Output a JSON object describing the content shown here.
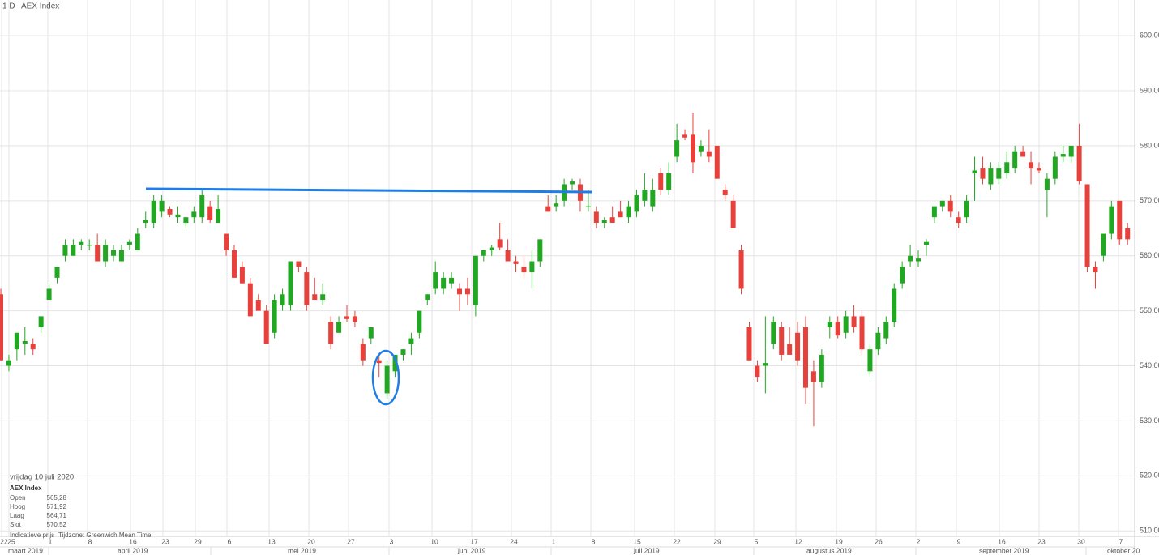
{
  "chart_data": {
    "type": "candlestick",
    "interval": "1 D",
    "title": "AEX Index",
    "ylim": [
      509,
      606.5
    ],
    "yticks": [
      {
        "value": 510,
        "label": "510,00"
      },
      {
        "value": 520,
        "label": "520,00"
      },
      {
        "value": 530,
        "label": "530,00"
      },
      {
        "value": 540,
        "label": "540,00"
      },
      {
        "value": 550,
        "label": "550,00"
      },
      {
        "value": 560,
        "label": "560,00"
      },
      {
        "value": 570,
        "label": "570,00"
      },
      {
        "value": 580,
        "label": "580,00"
      },
      {
        "value": 590,
        "label": "590,00"
      },
      {
        "value": 600,
        "label": "600,00"
      }
    ],
    "grid": true,
    "up_color": "#22a722",
    "down_color": "#e8413c",
    "open": [
      553,
      540,
      543,
      544,
      544,
      547,
      552,
      556,
      560,
      560,
      562,
      562,
      562,
      559,
      560,
      559,
      562,
      561,
      566,
      566,
      568,
      568.5,
      567,
      566,
      567,
      567,
      569,
      566,
      564,
      561,
      558,
      555,
      552,
      550,
      546,
      551,
      551,
      559,
      557,
      553,
      552,
      548,
      546,
      549,
      549,
      544,
      545,
      541,
      535,
      539,
      542,
      544,
      546,
      552,
      554,
      554,
      555,
      554,
      554,
      551,
      560,
      561,
      563,
      561,
      559,
      558,
      557,
      559,
      569,
      569,
      570,
      573,
      573,
      569,
      568,
      566,
      567,
      568,
      567,
      568,
      570,
      569,
      575,
      572,
      578,
      582,
      582,
      579,
      579,
      580,
      572,
      570,
      561,
      547,
      540,
      540,
      544,
      547,
      544,
      546,
      547,
      539,
      537,
      547,
      548,
      546,
      549,
      549,
      539,
      543,
      545,
      548,
      555,
      559,
      559,
      562,
      567,
      569,
      570,
      567,
      567,
      575,
      576,
      573,
      574,
      575,
      576,
      579,
      577,
      576,
      572,
      574,
      578,
      578,
      580,
      573,
      558,
      560,
      564,
      570,
      565
    ],
    "high": [
      554,
      542,
      546,
      547,
      545,
      549,
      555,
      558,
      563,
      563,
      563,
      563,
      564,
      563,
      562,
      562,
      563,
      565,
      568,
      571,
      571,
      569,
      569,
      567,
      569,
      572,
      570,
      571,
      564,
      562,
      559,
      556,
      553,
      551,
      553,
      554,
      559,
      559,
      558,
      556,
      555,
      549,
      549,
      551,
      550,
      545,
      547,
      542,
      541,
      542,
      543,
      546,
      550,
      553,
      559,
      557,
      557,
      555,
      556,
      560,
      561,
      562,
      566,
      563,
      560,
      560,
      561,
      563,
      571,
      571,
      574,
      574,
      574,
      572,
      569,
      567,
      569,
      570,
      570,
      572,
      575,
      574,
      576,
      577,
      584,
      583,
      586,
      581,
      583,
      580,
      573,
      571,
      562,
      548,
      541,
      549,
      549,
      548,
      547,
      548,
      549,
      541,
      543,
      549,
      549,
      550,
      551,
      550,
      544,
      547,
      549,
      555,
      559,
      562,
      561,
      563,
      569,
      570,
      571,
      568,
      571,
      578,
      578,
      577,
      577,
      579,
      580,
      580,
      579,
      577,
      575,
      579,
      580,
      580,
      584,
      573,
      559,
      564,
      570,
      570,
      566
    ],
    "low": [
      541,
      539,
      541,
      542,
      542,
      546,
      552,
      555,
      559,
      560,
      561,
      561,
      559,
      558,
      559,
      559,
      561,
      561,
      565,
      565,
      567,
      567,
      566,
      565,
      566,
      566,
      566,
      566,
      560,
      556,
      555,
      549,
      550,
      544,
      545,
      550,
      550,
      557,
      550,
      552,
      551,
      543,
      546,
      548,
      547,
      540,
      544,
      538,
      534,
      538,
      541,
      542,
      545,
      551,
      553,
      553,
      554,
      550,
      551,
      549,
      559,
      560,
      561,
      559,
      557,
      556,
      554,
      558,
      568,
      568,
      569,
      572,
      568,
      568,
      565,
      565,
      566,
      567,
      566,
      567,
      569,
      568,
      571,
      571,
      577,
      581,
      575,
      578,
      577,
      574,
      570,
      565,
      553,
      541,
      537,
      535,
      543,
      541,
      542,
      540,
      533,
      529,
      536,
      545,
      545,
      545,
      546,
      542,
      538,
      542,
      544,
      547,
      554,
      558,
      558,
      560,
      566,
      568,
      567,
      565,
      566,
      570,
      573,
      572,
      573,
      574,
      575,
      578,
      573,
      575,
      567,
      573,
      577,
      577,
      573,
      557,
      554,
      559,
      563,
      562,
      562
    ],
    "close": [
      541,
      541,
      546,
      544.5,
      543,
      549,
      554,
      558,
      562,
      562,
      562.5,
      562,
      559,
      562,
      561,
      561,
      562.5,
      564,
      566.5,
      570,
      570,
      567.5,
      567.5,
      567,
      568,
      571,
      566.5,
      568.5,
      561,
      556,
      555,
      549,
      550,
      544,
      552,
      553,
      559,
      558,
      551,
      552,
      553,
      544,
      548,
      548.5,
      548,
      541,
      547,
      540.5,
      540,
      542,
      543,
      545,
      550,
      553,
      557,
      556,
      556,
      553,
      553,
      560,
      561,
      561.5,
      561.5,
      559,
      558.5,
      557,
      559,
      563,
      568,
      569.5,
      573,
      573.5,
      570,
      569,
      566,
      566.5,
      566,
      567,
      569,
      571,
      572,
      572,
      572,
      575,
      581,
      581.5,
      577,
      580,
      578,
      574,
      571,
      565,
      554,
      541,
      538,
      540.5,
      548,
      542,
      542,
      541,
      536,
      537,
      542,
      548,
      545.5,
      549,
      547,
      543,
      543,
      546,
      548,
      554,
      558,
      560,
      559.5,
      562.5,
      569,
      570,
      568,
      566,
      570,
      575.5,
      574,
      576,
      576,
      577,
      579,
      578,
      576,
      575.5,
      574,
      578,
      578.5,
      580,
      573.5,
      558,
      557,
      564,
      569,
      563,
      563
    ],
    "day_labels": [
      "22",
      "25",
      "1",
      "8",
      "16",
      "23",
      "29",
      "6",
      "13",
      "20",
      "27",
      "3",
      "10",
      "17",
      "24",
      "1",
      "8",
      "15",
      "22",
      "29",
      "5",
      "12",
      "19",
      "26",
      "2",
      "9",
      "16",
      "23",
      "30",
      "7"
    ],
    "month_labels": [
      "maart 2019",
      "april 2019",
      "mei 2019",
      "juni 2019",
      "juli 2019",
      "augustus 2019",
      "september 2019",
      "oktober 20"
    ]
  },
  "info_box": {
    "date": "vrijdag 10 juli 2020",
    "name": "AEX Index",
    "rows": [
      {
        "label": "Open",
        "value": "565,28"
      },
      {
        "label": "Hoog",
        "value": "571,92"
      },
      {
        "label": "Laag",
        "value": "564,71"
      },
      {
        "label": "Slot",
        "value": "570,52"
      }
    ],
    "footer": [
      "Indicatieve prijs",
      "Tijdzone: Greenwich Mean Time"
    ]
  }
}
